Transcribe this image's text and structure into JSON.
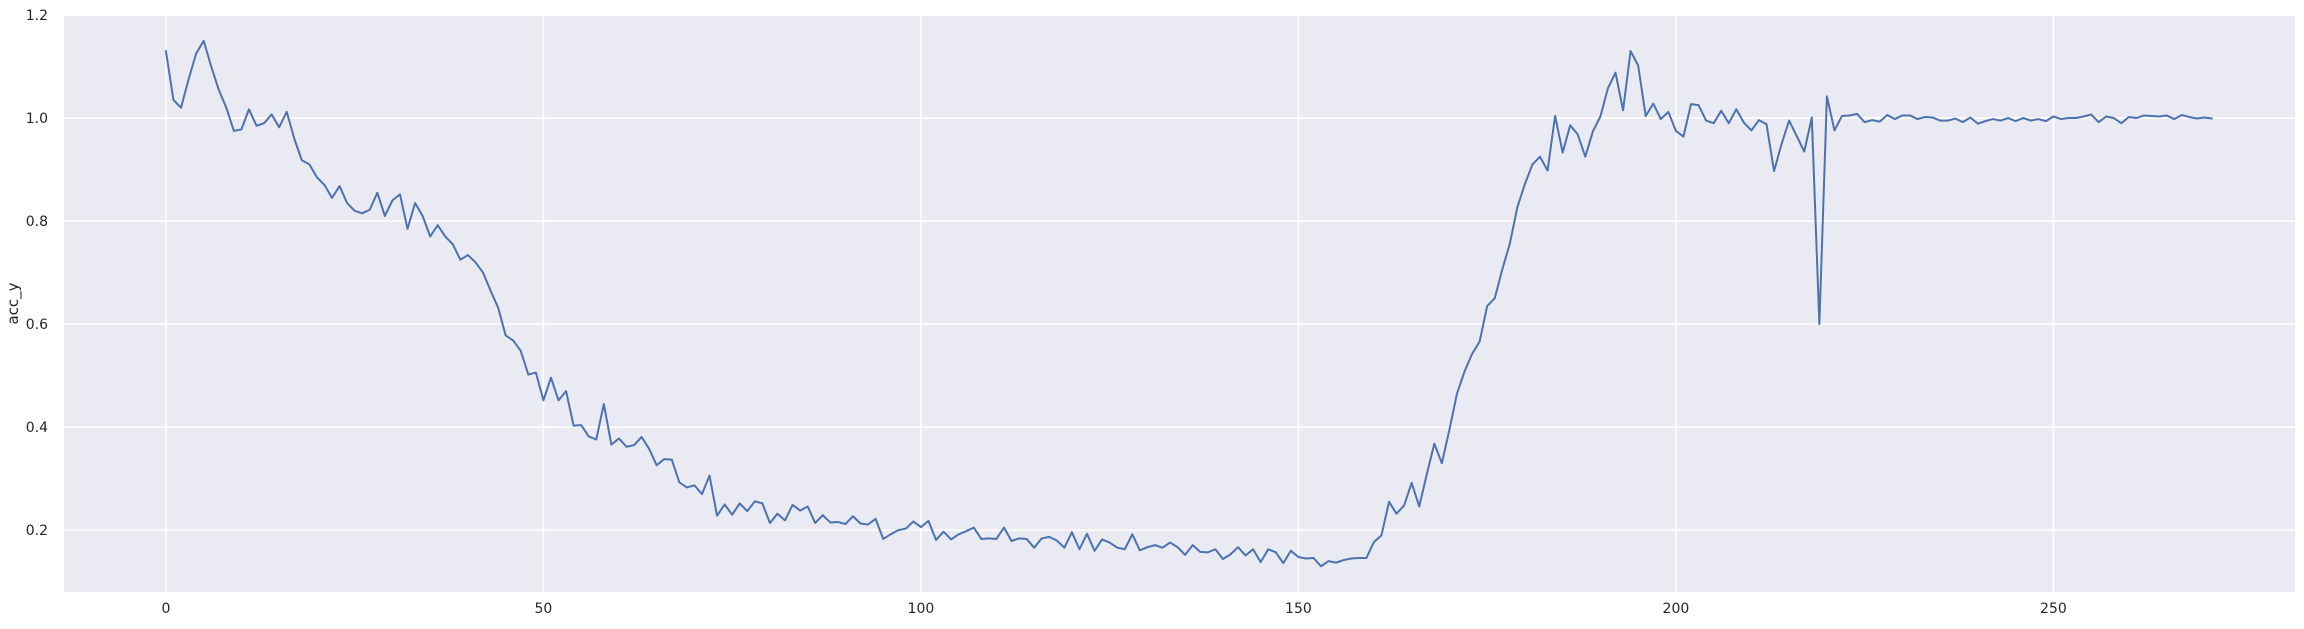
{
  "chart_data": {
    "type": "line",
    "title": "",
    "xlabel": "",
    "ylabel": "acc_y",
    "xlim": [
      -13.5,
      282
    ],
    "ylim": [
      0.08,
      1.2
    ],
    "x_ticks": [
      0,
      50,
      100,
      150,
      200,
      250
    ],
    "y_ticks": [
      0.2,
      0.4,
      0.6,
      0.8,
      1.0,
      1.2
    ],
    "x_tick_labels": [
      "0",
      "50",
      "100",
      "150",
      "200",
      "250"
    ],
    "y_tick_labels": [
      "0.2",
      "0.4",
      "0.6",
      "0.8",
      "1.0",
      "1.2"
    ],
    "grid": true,
    "legend": "none",
    "colors": {
      "background": "#eaeaf2",
      "grid": "#ffffff",
      "line": "#4c72b0"
    },
    "series": [
      {
        "x_start": 0,
        "x_step": 1,
        "values": [
          1.13,
          1.035,
          1.02,
          1.075,
          1.125,
          1.15,
          1.1,
          1.055,
          1.02,
          0.975,
          0.978,
          1.017,
          0.985,
          0.99,
          1.007,
          0.982,
          1.012,
          0.96,
          0.918,
          0.91,
          0.885,
          0.87,
          0.845,
          0.868,
          0.835,
          0.82,
          0.815,
          0.822,
          0.855,
          0.81,
          0.84,
          0.852,
          0.785,
          0.835,
          0.81,
          0.77,
          0.792,
          0.77,
          0.755,
          0.725,
          0.734,
          0.72,
          0.7,
          0.665,
          0.632,
          0.578,
          0.568,
          0.548,
          0.502,
          0.506,
          0.452,
          0.496,
          0.452,
          0.47,
          0.403,
          0.404,
          0.382,
          0.376,
          0.445,
          0.366,
          0.378,
          0.362,
          0.365,
          0.381,
          0.358,
          0.326,
          0.338,
          0.337,
          0.293,
          0.283,
          0.287,
          0.27,
          0.306,
          0.228,
          0.25,
          0.23,
          0.252,
          0.237,
          0.256,
          0.252,
          0.214,
          0.232,
          0.219,
          0.249,
          0.238,
          0.246,
          0.214,
          0.229,
          0.215,
          0.216,
          0.212,
          0.227,
          0.213,
          0.211,
          0.222,
          0.183,
          0.192,
          0.2,
          0.203,
          0.217,
          0.206,
          0.218,
          0.181,
          0.197,
          0.182,
          0.192,
          0.198,
          0.205,
          0.183,
          0.184,
          0.183,
          0.205,
          0.179,
          0.184,
          0.183,
          0.166,
          0.184,
          0.187,
          0.18,
          0.166,
          0.196,
          0.163,
          0.193,
          0.16,
          0.182,
          0.176,
          0.166,
          0.163,
          0.192,
          0.161,
          0.167,
          0.171,
          0.166,
          0.176,
          0.167,
          0.152,
          0.171,
          0.158,
          0.157,
          0.163,
          0.144,
          0.153,
          0.167,
          0.151,
          0.163,
          0.138,
          0.163,
          0.157,
          0.136,
          0.16,
          0.148,
          0.145,
          0.146,
          0.13,
          0.14,
          0.137,
          0.142,
          0.145,
          0.146,
          0.146,
          0.177,
          0.19,
          0.255,
          0.232,
          0.248,
          0.292,
          0.246,
          0.308,
          0.368,
          0.33,
          0.395,
          0.465,
          0.508,
          0.542,
          0.566,
          0.635,
          0.65,
          0.706,
          0.756,
          0.827,
          0.872,
          0.91,
          0.925,
          0.898,
          1.004,
          0.933,
          0.986,
          0.968,
          0.925,
          0.974,
          1.003,
          1.058,
          1.088,
          1.015,
          1.13,
          1.102,
          1.004,
          1.028,
          0.998,
          1.012,
          0.975,
          0.964,
          1.027,
          1.025,
          0.995,
          0.99,
          1.014,
          0.99,
          1.017,
          0.991,
          0.976,
          0.996,
          0.988,
          0.897,
          0.95,
          0.995,
          0.965,
          0.935,
          1.001,
          0.6,
          1.042,
          0.976,
          1.004,
          1.005,
          1.008,
          0.992,
          0.996,
          0.993,
          1.006,
          0.998,
          1.005,
          1.005,
          0.998,
          1.002,
          1.001,
          0.995,
          0.995,
          0.999,
          0.992,
          1.001,
          0.989,
          0.994,
          0.998,
          0.995,
          1.0,
          0.994,
          1.0,
          0.995,
          0.998,
          0.994,
          1.003,
          0.998,
          1.0,
          1.0,
          1.003,
          1.007,
          0.992,
          1.003,
          1.0,
          0.99,
          1.002,
          1.0,
          1.005,
          1.004,
          1.003,
          1.005,
          0.998,
          1.006,
          1.002,
          0.999,
          1.001,
          0.999
        ]
      }
    ]
  }
}
